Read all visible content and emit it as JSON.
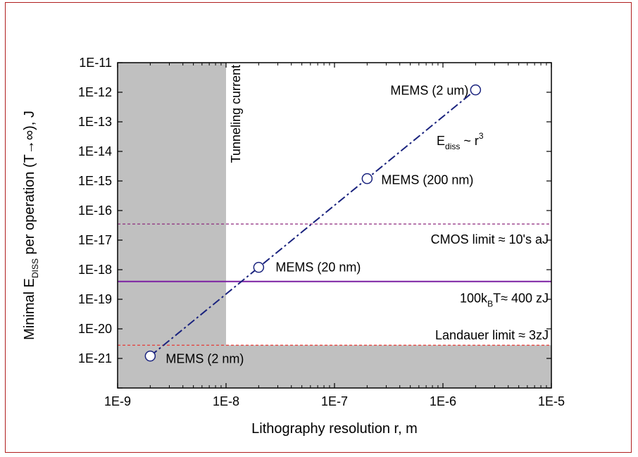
{
  "chart_data": {
    "type": "scatter",
    "title": "",
    "xscale": "log",
    "yscale": "log",
    "xlim": [
      1e-09,
      1e-05
    ],
    "ylim": [
      1e-22,
      1e-11
    ],
    "x_ticks": [
      "1E-9",
      "1E-8",
      "1E-7",
      "1E-6",
      "1E-5"
    ],
    "y_ticks": [
      "1E-11",
      "1E-12",
      "1E-13",
      "1E-14",
      "1E-15",
      "1E-16",
      "1E-17",
      "1E-18",
      "1E-19",
      "1E-20",
      "1E-21"
    ],
    "xlabel": "Lithography resolution r, m",
    "ylabel_parts": {
      "pre": "Minimal E",
      "sub": "DISS",
      "post": " per operation (T→∞), J"
    },
    "points": [
      {
        "x": 2e-09,
        "y": 1.2e-21,
        "label": "MEMS (2 nm)"
      },
      {
        "x": 2e-08,
        "y": 1.2e-18,
        "label": "MEMS (20 nm)"
      },
      {
        "x": 2e-07,
        "y": 1.2e-15,
        "label": "MEMS (200 nm)"
      },
      {
        "x": 2e-06,
        "y": 1.2e-12,
        "label": "MEMS (2 um)"
      }
    ],
    "fit_line": {
      "style": "dash-dot",
      "color": "#1a237e",
      "x_range": [
        2e-09,
        2e-06
      ]
    },
    "fit_label": {
      "pre": "E",
      "sub": "diss",
      "mid": "  ~ r",
      "sup": "3"
    },
    "hlines": [
      {
        "y": 3.5e-17,
        "style": "dashed",
        "color": "#8e2a7e",
        "label": "CMOS limit ≈ 10's aJ"
      },
      {
        "y": 4e-19,
        "style": "solid",
        "color": "#7b1fa2",
        "label_parts": {
          "pre": "100k",
          "sub": "B",
          "post": "T≈ 400 zJ"
        }
      },
      {
        "y": 2.8e-21,
        "style": "dashed",
        "color": "#e53935",
        "label": "Landauer limit ≈ 3zJ"
      }
    ],
    "shaded_regions": [
      {
        "x_range": [
          1e-09,
          1e-08
        ],
        "y_range": [
          1e-22,
          1e-11
        ],
        "color": "#c0c0c0",
        "label": "Tunneling current"
      },
      {
        "x_range": [
          1e-09,
          1e-05
        ],
        "y_range": [
          1e-22,
          2.8e-21
        ],
        "color": "#c0c0c0"
      }
    ],
    "grid": false
  }
}
